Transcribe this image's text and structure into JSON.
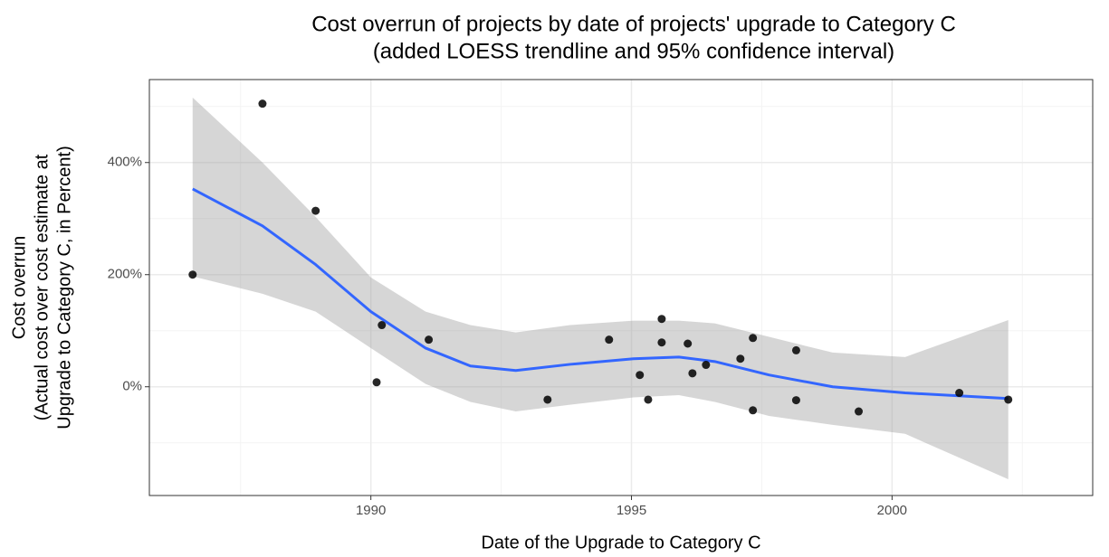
{
  "chart_data": {
    "type": "scatter",
    "title": [
      "Cost overrun of projects by date of projects' upgrade to Category C",
      "(added LOESS trendline and 95% confidence interval)"
    ],
    "xlabel": "Date of the Upgrade to Category C",
    "ylabel": [
      "Cost overrun",
      "(Actual cost over cost estimate at",
      "Upgrade to Category C, in Percent)"
    ],
    "x": [
      1986.58,
      1987.92,
      1988.94,
      1990.21,
      1990.11,
      1991.11,
      1993.39,
      1994.57,
      1995.16,
      1995.32,
      1995.58,
      1995.58,
      1996.08,
      1996.17,
      1996.43,
      1997.09,
      1997.33,
      1997.33,
      1998.16,
      1998.16,
      1999.36,
      2001.29,
      2002.23
    ],
    "y": [
      200,
      505,
      314,
      110,
      8,
      84,
      -23,
      84,
      21,
      -23,
      121,
      79,
      77,
      24,
      39,
      50,
      87,
      -42,
      65,
      -24,
      -44,
      -11,
      -23
    ],
    "color": "#000000",
    "trend": {
      "x": [
        1986.58,
        1987.92,
        1988.94,
        1990,
        1991.05,
        1991.91,
        1992.78,
        1993.82,
        1995.04,
        1995.91,
        1996.6,
        1997.64,
        1998.86,
        2000.25,
        2002.23
      ],
      "y": [
        353,
        287,
        218,
        134,
        69,
        37,
        29,
        40,
        50,
        53,
        45,
        21,
        0,
        -11,
        -21
      ],
      "lower": [
        197,
        166,
        134,
        69,
        5,
        -27,
        -44,
        -32,
        -19,
        -15,
        -27,
        -52,
        -68,
        -84,
        -165
      ],
      "upper": [
        516,
        400,
        303,
        195,
        134,
        110,
        97,
        110,
        118,
        118,
        113,
        89,
        61,
        53,
        119
      ],
      "color": "#3366ff",
      "band_color": "#999999"
    },
    "xlim": [
      1985.75,
      2003.85
    ],
    "ylim": [
      -194,
      548
    ],
    "xticks": [
      1990,
      1995,
      2000
    ],
    "yticks": [
      {
        "value": 0,
        "label": "0%"
      },
      {
        "value": 200,
        "label": "200%"
      },
      {
        "value": 400,
        "label": "400%"
      }
    ],
    "x_minor_ticks": [
      1987.5,
      1992.5,
      1997.5,
      2002.5
    ],
    "y_minor_ticks": [
      -100,
      100,
      300,
      500
    ],
    "grid": true
  }
}
